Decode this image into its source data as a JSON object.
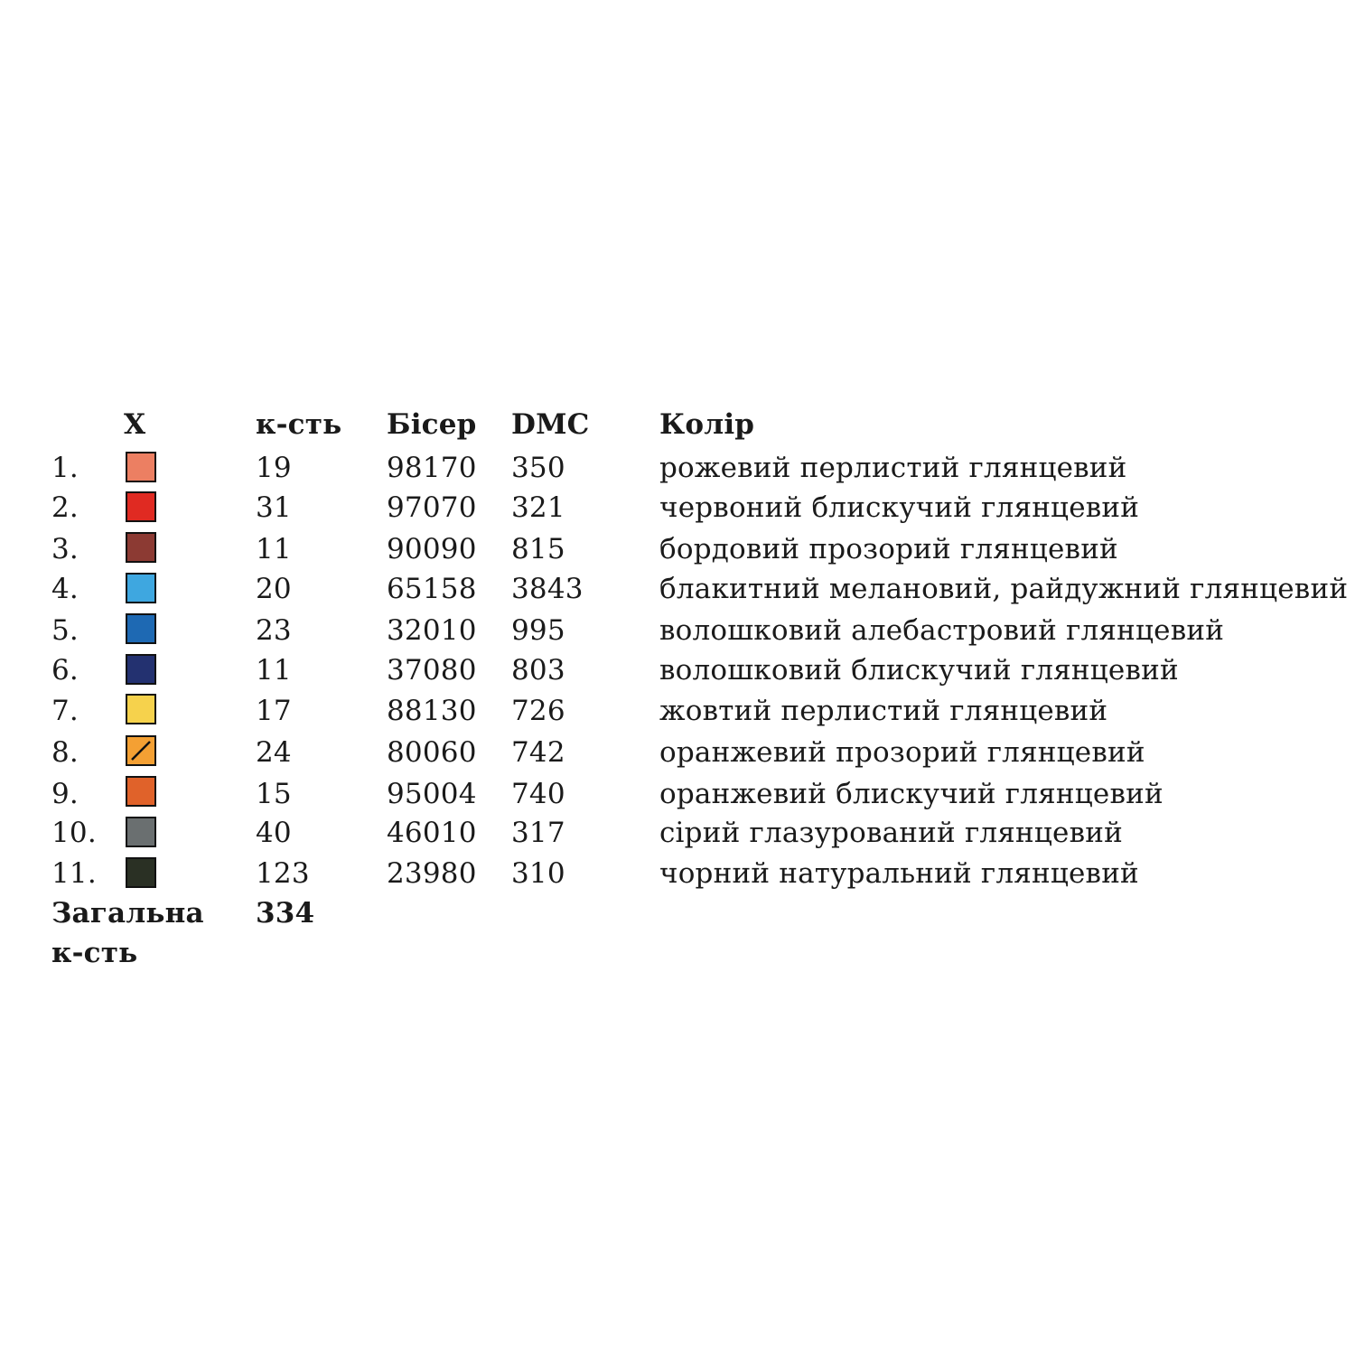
{
  "headers": {
    "symbol": "X",
    "count": "к-сть",
    "beads": "Бісер",
    "dmc": "DMC",
    "color": "Колір"
  },
  "rows": [
    {
      "num": "1.",
      "hex": "#ec7f62",
      "count": "19",
      "beads": "98170",
      "dmc": "350",
      "color": "рожевий перлистий глянцевий",
      "symbol_mark": ""
    },
    {
      "num": "2.",
      "hex": "#e02a22",
      "count": "31",
      "beads": "97070",
      "dmc": "321",
      "color": "червоний блискучий глянцевий",
      "symbol_mark": ""
    },
    {
      "num": "3.",
      "hex": "#8c3a33",
      "count": "11",
      "beads": "90090",
      "dmc": "815",
      "color": "бордовий прозорий глянцевий",
      "symbol_mark": ""
    },
    {
      "num": "4.",
      "hex": "#3ea7e0",
      "count": "20",
      "beads": "65158",
      "dmc": "3843",
      "color": "блакитний меланoвий, райдужний глянцевий",
      "symbol_mark": ""
    },
    {
      "num": "5.",
      "hex": "#1e69b3",
      "count": "23",
      "beads": "32010",
      "dmc": "995",
      "color": "волошковий алебастровий глянцевий",
      "symbol_mark": ""
    },
    {
      "num": "6.",
      "hex": "#233170",
      "count": "11",
      "beads": "37080",
      "dmc": "803",
      "color": "волошковий блискучий глянцевий",
      "symbol_mark": ""
    },
    {
      "num": "7.",
      "hex": "#f6d24c",
      "count": "17",
      "beads": "88130",
      "dmc": "726",
      "color": "жовтий перлистий глянцевий",
      "symbol_mark": ""
    },
    {
      "num": "8.",
      "hex": "#f4a033",
      "count": "24",
      "beads": "80060",
      "dmc": "742",
      "color": "оранжевий прозорий глянцевий",
      "symbol_mark": "slash"
    },
    {
      "num": "9.",
      "hex": "#e0622a",
      "count": "15",
      "beads": "95004",
      "dmc": "740",
      "color": "оранжевий блискучий глянцевий",
      "symbol_mark": ""
    },
    {
      "num": "10.",
      "hex": "#6a6f70",
      "count": "40",
      "beads": "46010",
      "dmc": "317",
      "color": "сірий глазурований глянцевий",
      "symbol_mark": ""
    },
    {
      "num": "11.",
      "hex": "#2a3024",
      "count": "123",
      "beads": "23980",
      "dmc": "310",
      "color": "чорний натуральний глянцевий",
      "symbol_mark": ""
    }
  ],
  "total": {
    "label_line1": "Загальна",
    "label_line2": "к-сть",
    "value": "334"
  }
}
